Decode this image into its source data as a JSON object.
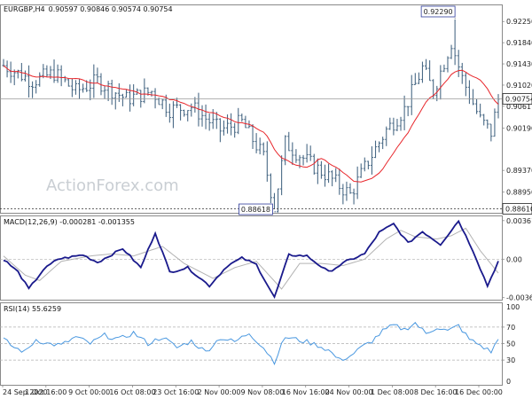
{
  "chart_data": [
    {
      "id": "price",
      "type": "ohlc",
      "title": "EURGBP,H4",
      "ohlc_label": "0.90597 0.90846 0.90574 0.90754",
      "watermark": "ActionForex.com",
      "ylim": [
        0.8855,
        0.9258
      ],
      "yticks": [
        "0.92250",
        "0.91840",
        "0.91430",
        "0.91020",
        "0.90611",
        "0.90190",
        "0.89370",
        "0.88950"
      ],
      "last_price_label": "0.90754",
      "last_price": 0.90754,
      "high_label": "0.92290",
      "high_value": 0.9229,
      "low_label": "0.88618",
      "low_value": 0.88618,
      "bottom_label": "0.88610",
      "bottom_value": 0.8861,
      "ma_color": "#e8262b",
      "bar_color": "#4a6a86",
      "n_bars": 138,
      "anchors": [
        [
          0,
          0.914
        ],
        [
          8,
          0.911
        ],
        [
          14,
          0.9125
        ],
        [
          20,
          0.909
        ],
        [
          26,
          0.911
        ],
        [
          34,
          0.9075
        ],
        [
          41,
          0.909
        ],
        [
          46,
          0.9055
        ],
        [
          52,
          0.906
        ],
        [
          60,
          0.9015
        ],
        [
          66,
          0.903
        ],
        [
          72,
          0.8963
        ],
        [
          75,
          0.8865
        ],
        [
          78,
          0.899
        ],
        [
          84,
          0.8955
        ],
        [
          90,
          0.8925
        ],
        [
          96,
          0.889
        ],
        [
          101,
          0.8955
        ],
        [
          106,
          0.9015
        ],
        [
          111,
          0.9055
        ],
        [
          116,
          0.9135
        ],
        [
          119,
          0.909
        ],
        [
          124,
          0.9185
        ],
        [
          127,
          0.9115
        ],
        [
          132,
          0.9035
        ],
        [
          135,
          0.901
        ],
        [
          137,
          0.9075
        ]
      ]
    },
    {
      "id": "macd",
      "type": "line",
      "title": "MACD(12,26,9) -0.000281 -0.001355",
      "ylim": [
        -0.0038,
        0.0041
      ],
      "yticks": [
        "0.003616",
        "0.00",
        "-0.003609"
      ],
      "series": [
        {
          "color": "#1a1a8c",
          "anchors": [
            [
              0,
              0.0
            ],
            [
              4,
              -0.0012
            ],
            [
              7,
              -0.0028
            ],
            [
              11,
              -0.001
            ],
            [
              15,
              0.0
            ],
            [
              22,
              0.0004
            ],
            [
              26,
              -0.0003
            ],
            [
              33,
              0.001
            ],
            [
              38,
              -0.0008
            ],
            [
              42,
              0.0025
            ],
            [
              46,
              -0.0012
            ],
            [
              51,
              -0.0008
            ],
            [
              57,
              -0.0025
            ],
            [
              62,
              -0.0006
            ],
            [
              66,
              0.0001
            ],
            [
              70,
              -0.0005
            ],
            [
              75,
              -0.0036
            ],
            [
              79,
              0.0004
            ],
            [
              84,
              0.0003
            ],
            [
              90,
              -0.0012
            ],
            [
              95,
              -0.0002
            ],
            [
              100,
              0.0005
            ],
            [
              104,
              0.0025
            ],
            [
              108,
              0.0033
            ],
            [
              112,
              0.0015
            ],
            [
              116,
              0.0026
            ],
            [
              121,
              0.0014
            ],
            [
              126,
              0.0036
            ],
            [
              130,
              0.0008
            ],
            [
              134,
              -0.0025
            ],
            [
              137,
              -0.0002
            ]
          ]
        },
        {
          "color": "#b3b3b3",
          "anchors": [
            [
              0,
              0.0003
            ],
            [
              6,
              -0.0015
            ],
            [
              10,
              -0.002
            ],
            [
              16,
              -0.0002
            ],
            [
              24,
              0.0003
            ],
            [
              30,
              0.0005
            ],
            [
              36,
              0.0003
            ],
            [
              44,
              0.0012
            ],
            [
              50,
              -0.0004
            ],
            [
              58,
              -0.0018
            ],
            [
              64,
              -0.0008
            ],
            [
              70,
              -0.0002
            ],
            [
              77,
              -0.0028
            ],
            [
              82,
              -0.0004
            ],
            [
              88,
              -0.0004
            ],
            [
              94,
              -0.0006
            ],
            [
              100,
              0.0
            ],
            [
              106,
              0.0019
            ],
            [
              110,
              0.0027
            ],
            [
              114,
              0.0021
            ],
            [
              120,
              0.0019
            ],
            [
              124,
              0.0022
            ],
            [
              128,
              0.0029
            ],
            [
              132,
              0.0008
            ],
            [
              137,
              -0.0013
            ]
          ]
        }
      ]
    },
    {
      "id": "rsi",
      "type": "line",
      "title": "RSI(14) 55.6259",
      "ylim": [
        0,
        100
      ],
      "yticks": [
        "100",
        "70",
        "50",
        "30",
        "0"
      ],
      "levels": [
        70,
        50,
        30
      ],
      "series": [
        {
          "color": "#4a98e0",
          "anchors": [
            [
              0,
              55
            ],
            [
              3,
              45
            ],
            [
              6,
              40
            ],
            [
              9,
              55
            ],
            [
              12,
              50
            ],
            [
              16,
              48
            ],
            [
              20,
              58
            ],
            [
              24,
              50
            ],
            [
              28,
              60
            ],
            [
              32,
              55
            ],
            [
              36,
              63
            ],
            [
              40,
              50
            ],
            [
              44,
              58
            ],
            [
              48,
              45
            ],
            [
              52,
              53
            ],
            [
              56,
              40
            ],
            [
              60,
              57
            ],
            [
              64,
              52
            ],
            [
              68,
              63
            ],
            [
              72,
              45
            ],
            [
              75,
              28
            ],
            [
              78,
              58
            ],
            [
              81,
              55
            ],
            [
              84,
              52
            ],
            [
              87,
              48
            ],
            [
              90,
              42
            ],
            [
              93,
              30
            ],
            [
              96,
              35
            ],
            [
              99,
              45
            ],
            [
              102,
              53
            ],
            [
              105,
              65
            ],
            [
              108,
              72
            ],
            [
              111,
              67
            ],
            [
              114,
              75
            ],
            [
              117,
              62
            ],
            [
              120,
              70
            ],
            [
              123,
              65
            ],
            [
              126,
              72
            ],
            [
              129,
              55
            ],
            [
              132,
              48
            ],
            [
              135,
              40
            ],
            [
              137,
              55
            ]
          ]
        }
      ]
    }
  ],
  "x_axis": {
    "ticks": [
      "24 Sep 2020",
      "1 Oct 16:00",
      "9 Oct 00:00",
      "16 Oct 08:00",
      "23 Oct 16:00",
      "2 Nov 00:00",
      "9 Nov 08:00",
      "16 Nov 16:00",
      "24 Nov 00:00",
      "1 Dec 08:00",
      "8 Dec 16:00",
      "16 Dec 00:00"
    ]
  },
  "colors": {
    "frame": "#8a8a8a",
    "grid_dash": "#9a9a9a",
    "level_dash": "#b0b0b0",
    "zero_line": "#888888"
  }
}
